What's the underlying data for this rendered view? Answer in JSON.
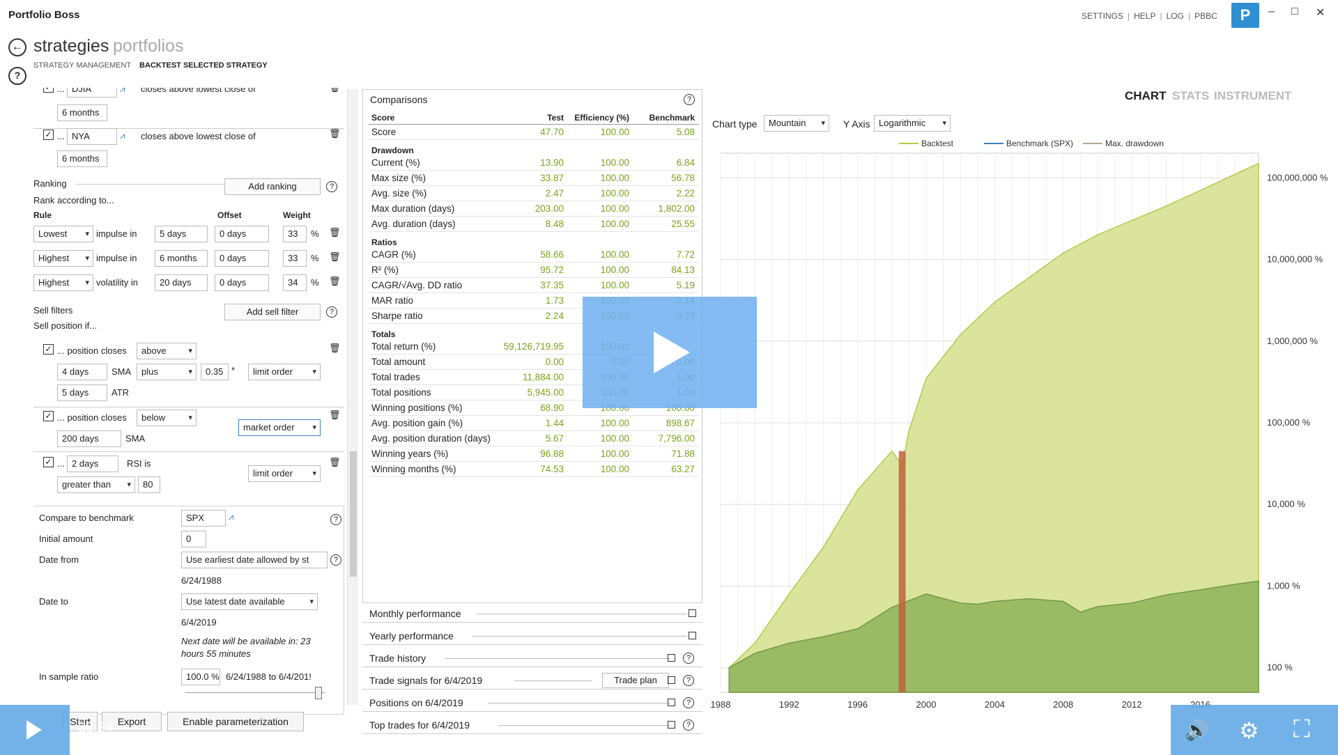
{
  "app": {
    "title": "Portfolio Boss"
  },
  "topnav": {
    "settings": "SETTINGS",
    "help": "HELP",
    "log": "LOG",
    "pbbc": "PBBC",
    "sep": "|",
    "logo": "P"
  },
  "window": {
    "minimize": "–",
    "maximize": "□",
    "close": "✕"
  },
  "header": {
    "tab_strategies": "strategies",
    "tab_portfolios": "portfolios",
    "back_icon": "←",
    "help_icon": "?"
  },
  "breadcrumb": {
    "management": "STRATEGY MANAGEMENT",
    "backtest": "BACKTEST SELECTED STRATEGY"
  },
  "buy_filters": [
    {
      "checked": true,
      "symbol": "DJIA",
      "text": "closes above lowest close of",
      "period": "6 months"
    },
    {
      "checked": true,
      "symbol": "NYA",
      "text": "closes above lowest close of",
      "period": "6 months"
    }
  ],
  "filter_prefix": "...",
  "ranking": {
    "title": "Ranking",
    "add_button": "Add ranking",
    "subtitle": "Rank according to...",
    "col_rule": "Rule",
    "col_offset": "Offset",
    "col_weight": "Weight",
    "pct": "%",
    "rows": [
      {
        "rule": "Lowest",
        "metric": "impulse in",
        "period": "5 days",
        "offset": "0 days",
        "weight": "33"
      },
      {
        "rule": "Highest",
        "metric": "impulse in",
        "period": "6 months",
        "offset": "0 days",
        "weight": "33"
      },
      {
        "rule": "Highest",
        "metric": "volatility in",
        "period": "20 days",
        "offset": "0 days",
        "weight": "34"
      }
    ]
  },
  "sell": {
    "title": "Sell filters",
    "add_button": "Add sell filter",
    "subtitle": "Sell position if...",
    "f1": {
      "text": "... position closes",
      "dir": "above",
      "period": "4 days",
      "ind": "SMA",
      "op": "plus",
      "mult": "0.35",
      "star": "*",
      "order": "limit order",
      "atr_period": "5 days",
      "atr": "ATR"
    },
    "f2": {
      "text": "... position closes",
      "dir": "below",
      "order": "market order",
      "period": "200 days",
      "ind": "SMA"
    },
    "f3": {
      "prefix": "...",
      "period": "2 days",
      "text": "RSI is",
      "order": "limit order",
      "cmp": "greater than",
      "value": "80"
    }
  },
  "settings": {
    "benchmark_label": "Compare to benchmark",
    "benchmark": "SPX",
    "initial_label": "Initial amount",
    "initial": "0",
    "from_label": "Date from",
    "from_value": "Use earliest date allowed by st",
    "from_date": "6/24/1988",
    "to_label": "Date to",
    "to_value": "Use latest date available",
    "to_date": "6/4/2019",
    "next_note": "Next date will be available in: 23 hours 55 minutes",
    "ratio_label": "In sample ratio",
    "ratio": "100.0 %",
    "ratio_range": "6/24/1988 to 6/4/201!"
  },
  "bottom": {
    "start": "Start",
    "export": "Export",
    "param": "Enable parameterization",
    "time": "39:24"
  },
  "comparisons": {
    "title": "Comparisons",
    "headers": [
      "Score",
      "Test",
      "Efficiency (%)",
      "Benchmark"
    ],
    "sections": [
      {
        "name": "",
        "rows": [
          [
            "Score",
            "47.70",
            "100.00",
            "5.08"
          ]
        ]
      },
      {
        "name": "Drawdown",
        "rows": [
          [
            "Current (%)",
            "13.90",
            "100.00",
            "6.84"
          ],
          [
            "Max size (%)",
            "33.87",
            "100.00",
            "56.78"
          ],
          [
            "Avg. size (%)",
            "2.47",
            "100.00",
            "2.22"
          ],
          [
            "Max duration (days)",
            "203.00",
            "100.00",
            "1,802.00"
          ],
          [
            "Avg. duration (days)",
            "8.48",
            "100.00",
            "25.55"
          ]
        ]
      },
      {
        "name": "Ratios",
        "rows": [
          [
            "CAGR (%)",
            "58.66",
            "100.00",
            "7.72"
          ],
          [
            "R² (%)",
            "95.72",
            "100.00",
            "84.13"
          ],
          [
            "CAGR/√Avg. DD ratio",
            "37.35",
            "100.00",
            "5.19"
          ],
          [
            "MAR ratio",
            "1.73",
            "100.00",
            "0.14"
          ],
          [
            "Sharpe ratio",
            "2.24",
            "100.00",
            "0.27"
          ]
        ]
      },
      {
        "name": "Totals",
        "rows": [
          [
            "Total return (%)",
            "59,126,719.95",
            "100.00",
            ""
          ],
          [
            "Total amount",
            "0.00",
            "0.00",
            "0.00"
          ],
          [
            "Total trades",
            "11,884.00",
            "100.00",
            "1.00"
          ],
          [
            "Total positions",
            "5,945.00",
            "100.00",
            "1.00"
          ],
          [
            "Winning positions (%)",
            "68.90",
            "100.00",
            "100.00"
          ],
          [
            "Avg. position gain (%)",
            "1.44",
            "100.00",
            "898.67"
          ],
          [
            "Avg. position duration (days)",
            "5.67",
            "100.00",
            "7,796.00"
          ],
          [
            "Winning years (%)",
            "96.88",
            "100.00",
            "71.88"
          ],
          [
            "Winning months (%)",
            "74.53",
            "100.00",
            "63.27"
          ]
        ]
      }
    ]
  },
  "collapsibles": [
    {
      "title": "Monthly performance",
      "help": false
    },
    {
      "title": "Yearly performance",
      "help": false
    },
    {
      "title": "Trade history",
      "help": true
    },
    {
      "title": "Trade signals for 6/4/2019",
      "help": true,
      "button": "Trade plan"
    },
    {
      "title": "Positions on 6/4/2019",
      "help": true
    },
    {
      "title": "Top trades for 6/4/2019",
      "help": true
    }
  ],
  "right_tabs": {
    "chart": "CHART",
    "stats": "STATS",
    "instrument": "INSTRUMENT"
  },
  "chart_controls": {
    "type_label": "Chart type",
    "type_value": "Mountain",
    "axis_label": "Y Axis",
    "axis_value": "Logarithmic"
  },
  "colors": {
    "backtest": "#b7c84a",
    "benchmark": "#3b7fc4",
    "drawdown": "#b0a890",
    "bench_fill": "#8fb35a",
    "dd_bar": "#c0603a"
  },
  "chart_data": {
    "type": "area",
    "legend": [
      "Backtest",
      "Benchmark (SPX)",
      "Max. drawdown"
    ],
    "legend_position": "top",
    "x_ticks": [
      "1988",
      "1992",
      "1996",
      "2000",
      "2004",
      "2008",
      "2012",
      "2016"
    ],
    "y_ticks": [
      "100 %",
      "1,000 %",
      "10,000 %",
      "100,000 %",
      "1,000,000 %",
      "10,000,000 %",
      "100,000,000 %"
    ],
    "y_scale": "log",
    "xlim": [
      1988,
      2019.4
    ],
    "ylim": [
      50,
      200000000
    ],
    "grid": true,
    "series": [
      {
        "name": "Backtest",
        "x": [
          1988.5,
          1990,
          1992,
          1994,
          1996,
          1998,
          1998.6,
          1999,
          2000,
          2002,
          2004,
          2006,
          2008,
          2010,
          2012,
          2014,
          2016,
          2018,
          2019.4
        ],
        "values": [
          100,
          200,
          800,
          3000,
          15000,
          45000,
          30000,
          80000,
          350000,
          1200000,
          3000000,
          6000000,
          12000000,
          20000000,
          30000000,
          45000000,
          70000000,
          110000000,
          150000000
        ]
      },
      {
        "name": "Benchmark (SPX)",
        "x": [
          1988.5,
          1990,
          1992,
          1994,
          1996,
          1998,
          2000,
          2002,
          2003,
          2004,
          2006,
          2008,
          2009,
          2010,
          2012,
          2014,
          2016,
          2018,
          2019.4
        ],
        "values": [
          100,
          150,
          200,
          240,
          300,
          550,
          800,
          620,
          600,
          650,
          700,
          650,
          480,
          560,
          620,
          780,
          900,
          1050,
          1150
        ]
      }
    ],
    "max_drawdown_period": [
      1998.4,
      1998.8
    ]
  }
}
